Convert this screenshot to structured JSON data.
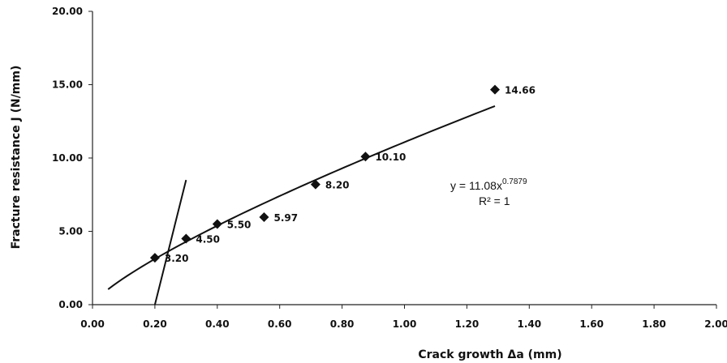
{
  "chart_data": {
    "type": "scatter",
    "xlabel": "Crack growth Δa (mm)",
    "ylabel": "Fracture resistance J (N/mm)",
    "xlim": [
      0,
      2
    ],
    "ylim": [
      0,
      20
    ],
    "x_ticks": [
      "0.00",
      "0.20",
      "0.40",
      "0.60",
      "0.80",
      "1.00",
      "1.20",
      "1.40",
      "1.60",
      "1.80",
      "2.00"
    ],
    "y_ticks": [
      "0.00",
      "5.00",
      "10.00",
      "15.00",
      "20.00"
    ],
    "grid": false,
    "points": [
      {
        "x": 0.2,
        "y": 3.2,
        "label": "3.20"
      },
      {
        "x": 0.3,
        "y": 4.5,
        "label": "4.50"
      },
      {
        "x": 0.4,
        "y": 5.5,
        "label": "5.50"
      },
      {
        "x": 0.55,
        "y": 5.97,
        "label": "5.97"
      },
      {
        "x": 0.715,
        "y": 8.2,
        "label": "8.20"
      },
      {
        "x": 0.875,
        "y": 10.1,
        "label": "10.10"
      },
      {
        "x": 1.29,
        "y": 14.66,
        "label": "14.66"
      }
    ],
    "trendline": {
      "type": "power",
      "coefficient": 11.08,
      "exponent": 0.7879,
      "x_range": [
        0.05,
        1.29
      ]
    },
    "blunting_line": {
      "x": [
        0.2,
        0.3
      ],
      "y": [
        0,
        8.5
      ]
    },
    "equation": {
      "main": "y = 11.08x",
      "exponent_text": "0.7879",
      "r2": "R² = 1"
    },
    "colors": {
      "marker": "#111111",
      "line": "#111111",
      "axis": "#222222"
    }
  }
}
